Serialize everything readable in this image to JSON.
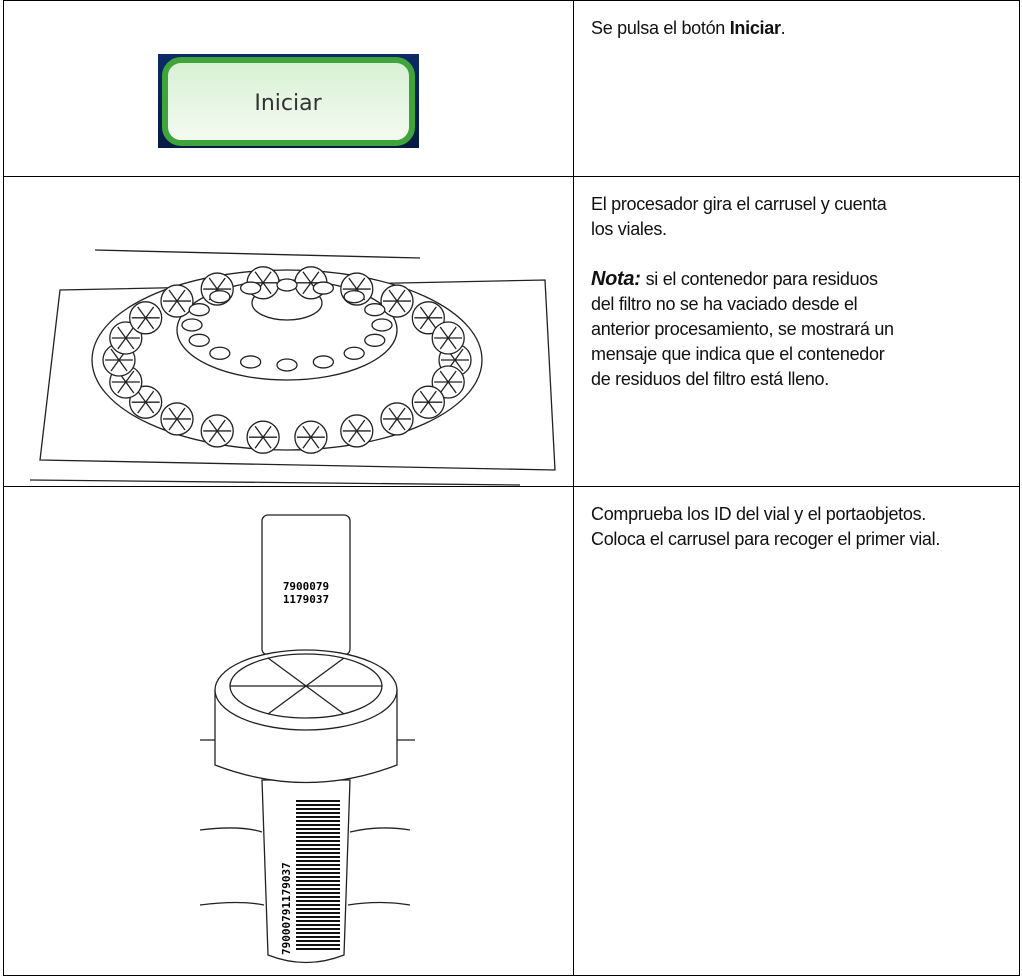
{
  "table": {
    "rows": [
      {
        "image": {
          "button_label": "Iniciar"
        },
        "text": {
          "lead": "Se pulsa el botón",
          "bold": "Iniciar",
          "end": "."
        }
      },
      {
        "text": {
          "paragraph_lines": [
            "El procesador gira el carrusel y cuenta",
            "los viales."
          ],
          "note_label": "Nota:",
          "note_lines": [
            "si el contenedor para residuos",
            "del filtro no se ha vaciado desde el",
            "anterior procesamiento, se mostrará un",
            "mensaje que indica que el contenedor",
            "de residuos del filtro está lleno."
          ]
        }
      },
      {
        "image": {
          "slide_id_lines": [
            "7900079",
            "1179037"
          ],
          "vial_barcode": "79000791179037"
        },
        "text": {
          "lines": [
            "Comprueba los ID del vial y el portaobjetos.",
            "Coloca el carrusel para recoger el primer vial."
          ]
        }
      }
    ]
  }
}
